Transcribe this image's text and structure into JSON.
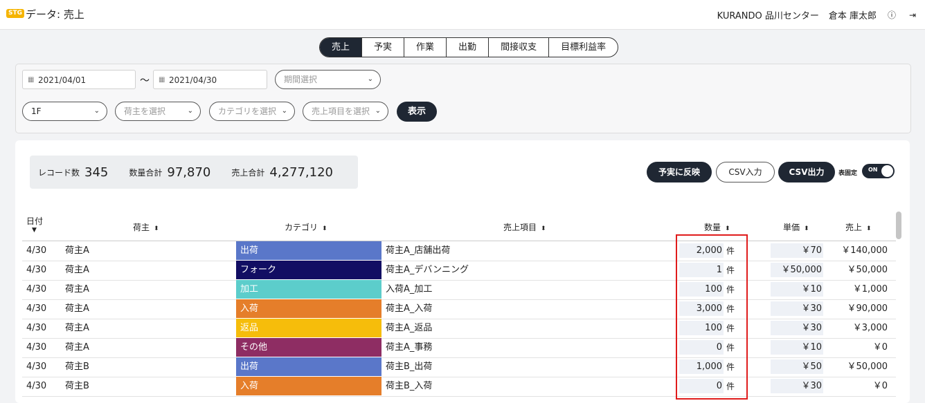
{
  "header": {
    "env_badge": "STG",
    "title": "データ: 売上",
    "company": "KURANDO 品川センター",
    "user": "倉本 庫太郎",
    "help_icon": "help-circle-icon",
    "logout_icon": "logout-icon"
  },
  "tabs": [
    {
      "label": "売上",
      "active": true
    },
    {
      "label": "予実",
      "active": false
    },
    {
      "label": "作業",
      "active": false
    },
    {
      "label": "出勤",
      "active": false
    },
    {
      "label": "間接収支",
      "active": false
    },
    {
      "label": "目標利益率",
      "active": false
    }
  ],
  "filters": {
    "date_from": "2021/04/01",
    "date_separator": "〜",
    "date_to": "2021/04/30",
    "period_placeholder": "期間選択",
    "floor": "1F",
    "shipper_placeholder": "荷主を選択",
    "category_placeholder": "カテゴリを選択",
    "item_placeholder": "売上項目を選択",
    "show_button": "表示"
  },
  "summary": {
    "record_label": "レコード数",
    "record_value": "345",
    "qty_label": "数量合計",
    "qty_value": "97,870",
    "sales_label": "売上合計",
    "sales_value": "4,277,120"
  },
  "actions": {
    "apply_button": "予実に反映",
    "csv_in_button": "CSV入力",
    "csv_out_button": "CSV出力",
    "fix_table_label": "表固定",
    "toggle_label": "ON"
  },
  "table": {
    "columns": {
      "date": "日付",
      "shipper": "荷主",
      "category": "カテゴリ",
      "item": "売上項目",
      "qty": "数量",
      "unit_price": "単価",
      "sales": "売上"
    },
    "rows": [
      {
        "date": "4/30",
        "shipper": "荷主A",
        "category": "出荷",
        "cat_color": "#5a77c9",
        "item": "荷主A_店舗出荷",
        "qty": "2,000",
        "unit": "件",
        "price": "￥70",
        "sales": "￥140,000"
      },
      {
        "date": "4/30",
        "shipper": "荷主A",
        "category": "フォーク",
        "cat_color": "#120e63",
        "item": "荷主A_デバンニング",
        "qty": "1",
        "unit": "件",
        "price": "￥50,000",
        "sales": "￥50,000"
      },
      {
        "date": "4/30",
        "shipper": "荷主A",
        "category": "加工",
        "cat_color": "#5ccdcb",
        "item": "入荷A_加工",
        "qty": "100",
        "unit": "件",
        "price": "￥10",
        "sales": "￥1,000"
      },
      {
        "date": "4/30",
        "shipper": "荷主A",
        "category": "入荷",
        "cat_color": "#e57e2a",
        "item": "荷主A_入荷",
        "qty": "3,000",
        "unit": "件",
        "price": "￥30",
        "sales": "￥90,000"
      },
      {
        "date": "4/30",
        "shipper": "荷主A",
        "category": "返品",
        "cat_color": "#f6bd0b",
        "item": "荷主A_返品",
        "qty": "100",
        "unit": "件",
        "price": "￥30",
        "sales": "￥3,000"
      },
      {
        "date": "4/30",
        "shipper": "荷主A",
        "category": "その他",
        "cat_color": "#8e2d63",
        "item": "荷主A_事務",
        "qty": "0",
        "unit": "件",
        "price": "￥10",
        "sales": "￥0"
      },
      {
        "date": "4/30",
        "shipper": "荷主B",
        "category": "出荷",
        "cat_color": "#5a77c9",
        "item": "荷主B_出荷",
        "qty": "1,000",
        "unit": "件",
        "price": "￥50",
        "sales": "￥50,000"
      },
      {
        "date": "4/30",
        "shipper": "荷主B",
        "category": "入荷",
        "cat_color": "#e57e2a",
        "item": "荷主B_入荷",
        "qty": "0",
        "unit": "件",
        "price": "￥30",
        "sales": "￥0"
      }
    ]
  }
}
